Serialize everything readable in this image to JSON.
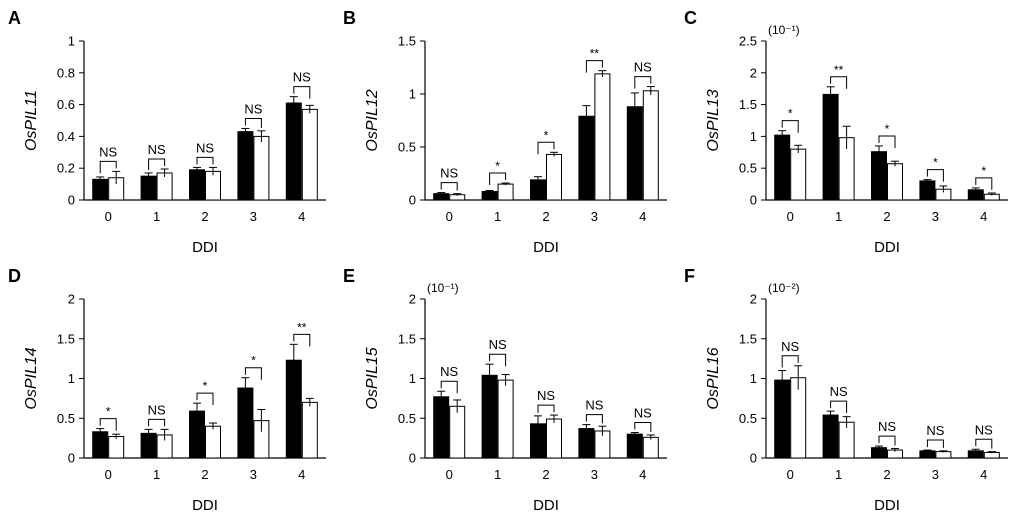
{
  "colors": {
    "black_bar": "#000000",
    "white_bar": "#ffffff",
    "axis": "#000000"
  },
  "chart_data": [
    {
      "type": "bar",
      "panel": "A",
      "ylabel": "OsPIL11",
      "ylabel_prefix": "Os",
      "ylabel_gene": "PIL11",
      "xlabel": "DDI",
      "scale_note": "",
      "categories": [
        "0",
        "1",
        "2",
        "3",
        "4"
      ],
      "ylim": [
        0,
        1
      ],
      "yticks": [
        "0",
        "0.2",
        "0.4",
        "0.6",
        "0.8",
        "1"
      ],
      "ytick_values": [
        0,
        0.2,
        0.4,
        0.6,
        0.8,
        1
      ],
      "series": [
        {
          "name": "black",
          "values": [
            0.13,
            0.15,
            0.19,
            0.43,
            0.61
          ],
          "errors": [
            0.015,
            0.02,
            0.015,
            0.02,
            0.04
          ]
        },
        {
          "name": "white",
          "values": [
            0.14,
            0.17,
            0.18,
            0.4,
            0.57
          ],
          "errors": [
            0.04,
            0.025,
            0.025,
            0.035,
            0.025
          ]
        }
      ],
      "significance": [
        "NS",
        "NS",
        "NS",
        "NS",
        "NS"
      ]
    },
    {
      "type": "bar",
      "panel": "B",
      "ylabel": "OsPIL12",
      "ylabel_prefix": "Os",
      "ylabel_gene": "PIL12",
      "xlabel": "DDI",
      "scale_note": "",
      "categories": [
        "0",
        "1",
        "2",
        "3",
        "4"
      ],
      "ylim": [
        0,
        1.5
      ],
      "yticks": [
        "0",
        "0.5",
        "1",
        "1.5"
      ],
      "ytick_values": [
        0,
        0.5,
        1,
        1.5
      ],
      "series": [
        {
          "name": "black",
          "values": [
            0.06,
            0.08,
            0.19,
            0.79,
            0.88
          ],
          "errors": [
            0.01,
            0.01,
            0.03,
            0.1,
            0.13
          ]
        },
        {
          "name": "white",
          "values": [
            0.05,
            0.15,
            0.43,
            1.19,
            1.03
          ],
          "errors": [
            0.01,
            0.01,
            0.02,
            0.03,
            0.04
          ]
        }
      ],
      "significance": [
        "NS",
        "*",
        "*",
        "**",
        "NS"
      ]
    },
    {
      "type": "bar",
      "panel": "C",
      "ylabel": "OsPIL13",
      "ylabel_prefix": "Os",
      "ylabel_gene": "PIL13",
      "xlabel": "DDI",
      "scale_note": "(10⁻¹)",
      "categories": [
        "0",
        "1",
        "2",
        "3",
        "4"
      ],
      "ylim": [
        0,
        2.5
      ],
      "yticks": [
        "0",
        "0.5",
        "1",
        "1.5",
        "2",
        "2.5"
      ],
      "ytick_values": [
        0,
        0.5,
        1,
        1.5,
        2,
        2.5
      ],
      "series": [
        {
          "name": "black",
          "values": [
            1.02,
            1.66,
            0.76,
            0.3,
            0.16
          ],
          "errors": [
            0.07,
            0.12,
            0.09,
            0.02,
            0.03
          ]
        },
        {
          "name": "white",
          "values": [
            0.8,
            0.98,
            0.57,
            0.17,
            0.09
          ],
          "errors": [
            0.06,
            0.18,
            0.04,
            0.05,
            0.02
          ]
        }
      ],
      "significance": [
        "*",
        "**",
        "*",
        "*",
        "*"
      ]
    },
    {
      "type": "bar",
      "panel": "D",
      "ylabel": "OsPIL14",
      "ylabel_prefix": "Os",
      "ylabel_gene": "PIL14",
      "xlabel": "DDI",
      "scale_note": "",
      "categories": [
        "0",
        "1",
        "2",
        "3",
        "4"
      ],
      "ylim": [
        0,
        2
      ],
      "yticks": [
        "0",
        "0.5",
        "1",
        "1.5",
        "2"
      ],
      "ytick_values": [
        0,
        0.5,
        1,
        1.5,
        2
      ],
      "series": [
        {
          "name": "black",
          "values": [
            0.33,
            0.31,
            0.59,
            0.88,
            1.23
          ],
          "errors": [
            0.04,
            0.05,
            0.1,
            0.13,
            0.2
          ]
        },
        {
          "name": "white",
          "values": [
            0.27,
            0.29,
            0.4,
            0.47,
            0.7
          ],
          "errors": [
            0.03,
            0.07,
            0.04,
            0.14,
            0.05
          ]
        }
      ],
      "significance": [
        "*",
        "NS",
        "*",
        "*",
        "**"
      ]
    },
    {
      "type": "bar",
      "panel": "E",
      "ylabel": "OsPIL15",
      "ylabel_prefix": "Os",
      "ylabel_gene": "PIL15",
      "xlabel": "DDI",
      "scale_note": "(10⁻¹)",
      "categories": [
        "0",
        "1",
        "2",
        "3",
        "4"
      ],
      "ylim": [
        0,
        2
      ],
      "yticks": [
        "0",
        "0.5",
        "1",
        "1.5",
        "2"
      ],
      "ytick_values": [
        0,
        0.5,
        1,
        1.5,
        2
      ],
      "series": [
        {
          "name": "black",
          "values": [
            0.77,
            1.04,
            0.43,
            0.37,
            0.3
          ],
          "errors": [
            0.07,
            0.14,
            0.1,
            0.05,
            0.02
          ]
        },
        {
          "name": "white",
          "values": [
            0.65,
            0.98,
            0.49,
            0.34,
            0.26
          ],
          "errors": [
            0.08,
            0.07,
            0.05,
            0.06,
            0.03
          ]
        }
      ],
      "significance": [
        "NS",
        "NS",
        "NS",
        "NS",
        "NS"
      ]
    },
    {
      "type": "bar",
      "panel": "F",
      "ylabel": "OsPIL16",
      "ylabel_prefix": "Os",
      "ylabel_gene": "PIL16",
      "xlabel": "DDI",
      "scale_note": "(10⁻²)",
      "categories": [
        "0",
        "1",
        "2",
        "3",
        "4"
      ],
      "ylim": [
        0,
        2
      ],
      "yticks": [
        "0",
        "0.5",
        "1",
        "1.5",
        "2"
      ],
      "ytick_values": [
        0,
        0.5,
        1,
        1.5,
        2
      ],
      "series": [
        {
          "name": "black",
          "values": [
            0.98,
            0.54,
            0.13,
            0.09,
            0.09
          ],
          "errors": [
            0.12,
            0.05,
            0.02,
            0.01,
            0.02
          ]
        },
        {
          "name": "white",
          "values": [
            1.01,
            0.45,
            0.1,
            0.08,
            0.07
          ],
          "errors": [
            0.15,
            0.07,
            0.02,
            0.01,
            0.01
          ]
        }
      ],
      "significance": [
        "NS",
        "NS",
        "NS",
        "NS",
        "NS"
      ]
    }
  ]
}
